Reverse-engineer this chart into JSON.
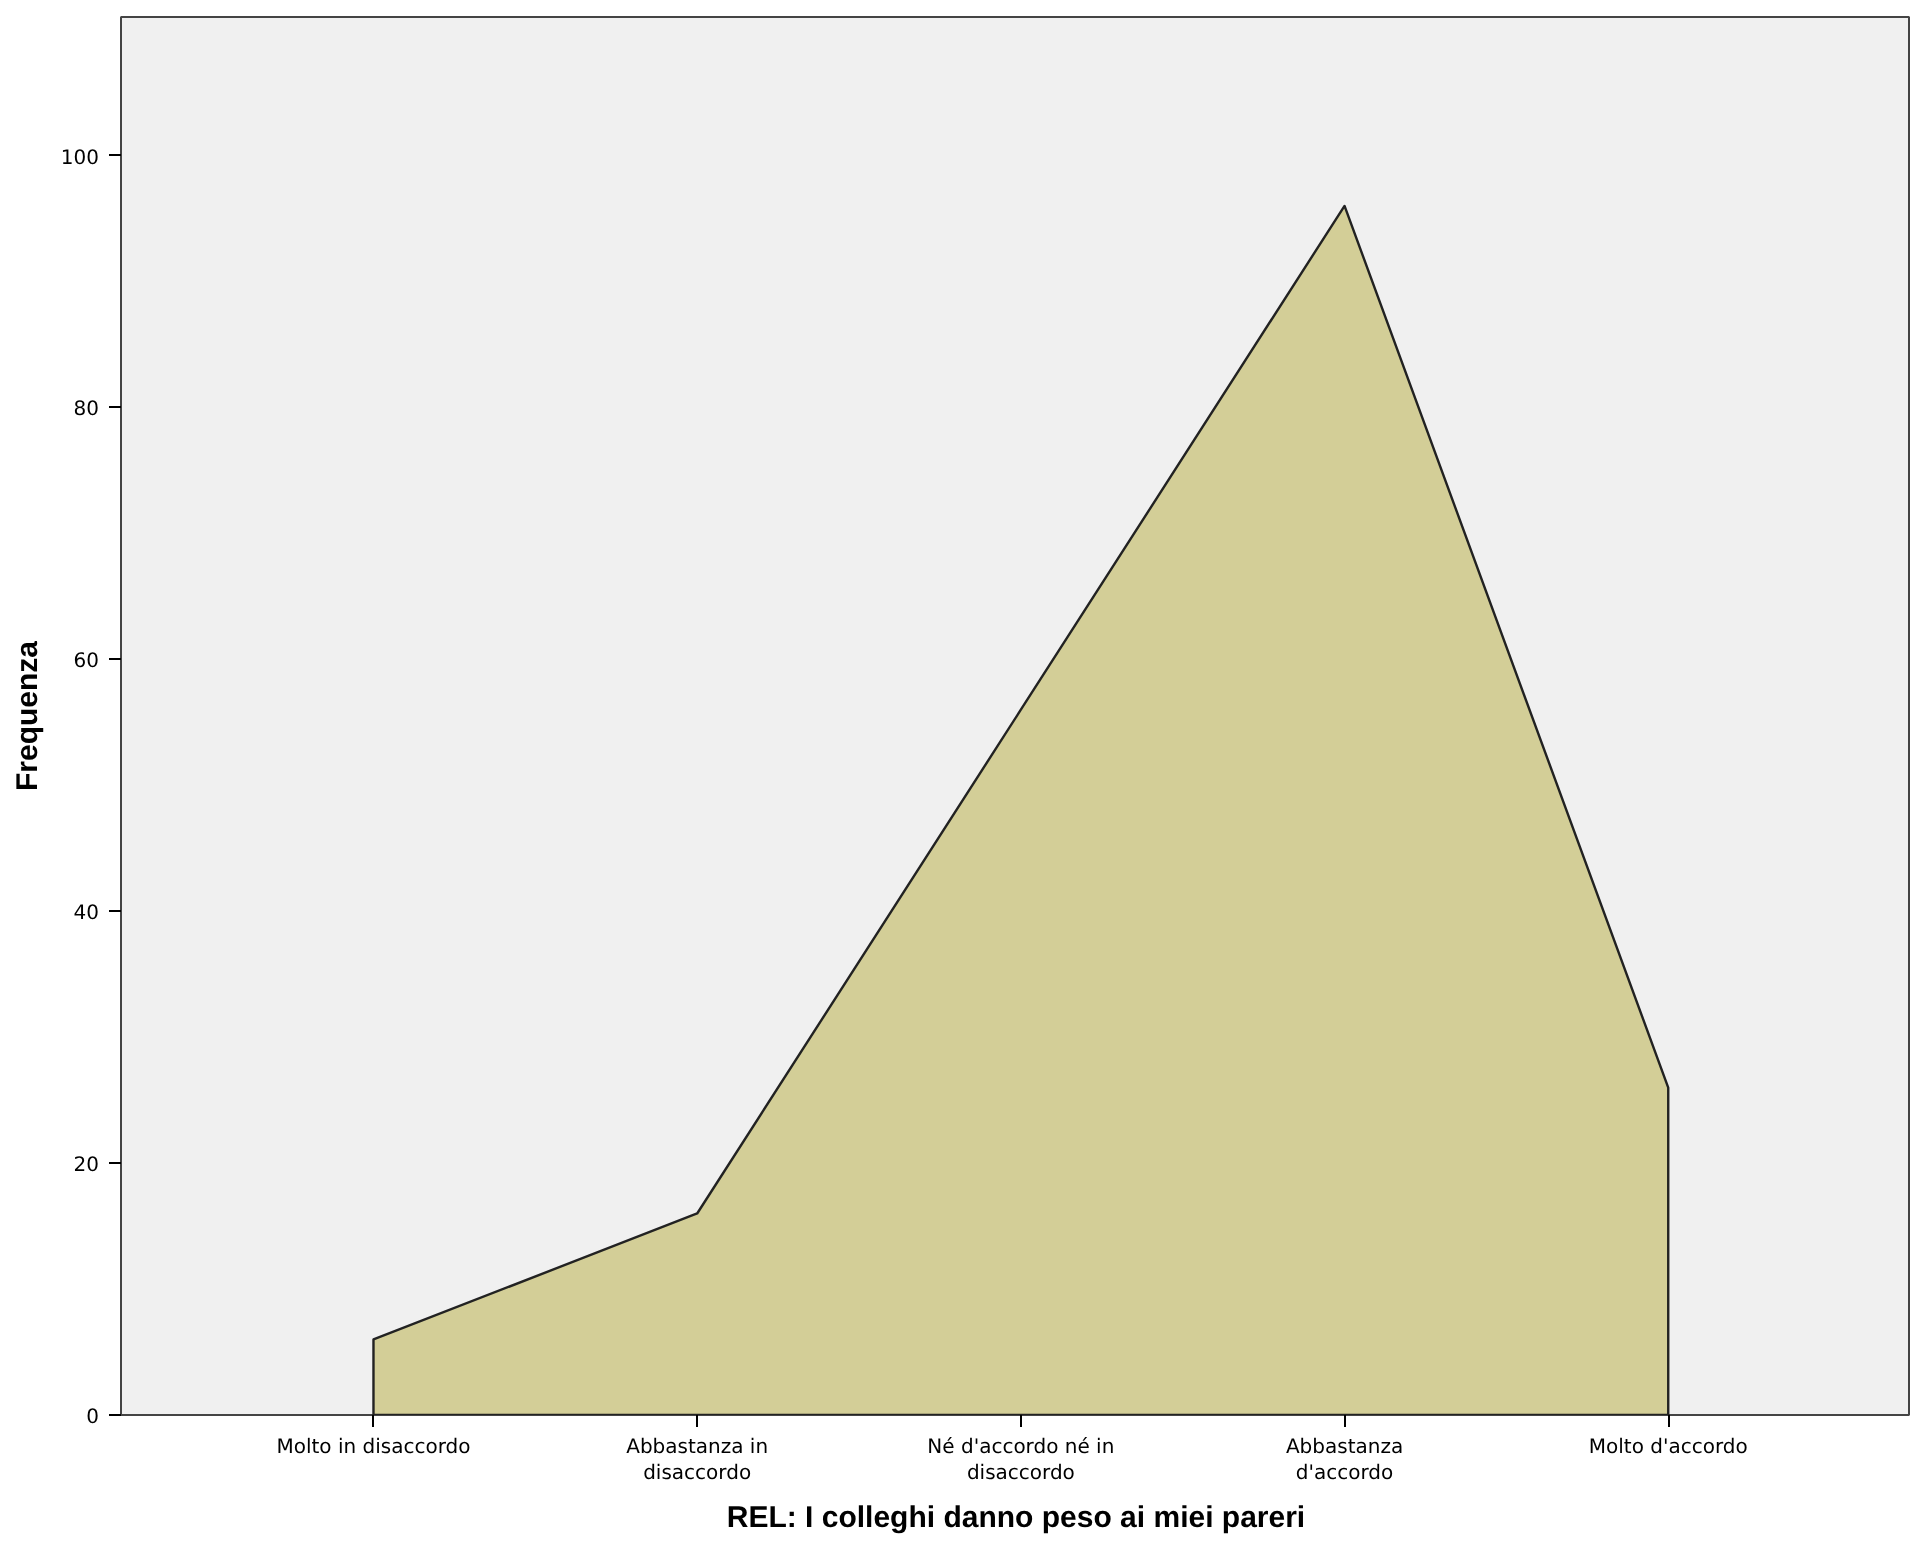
{
  "chart_data": {
    "type": "area",
    "xlabel": "REL: I colleghi danno peso ai miei pareri",
    "ylabel": "Frequenza",
    "categories": [
      "Molto in disaccordo",
      "Abbastanza in disaccordo",
      "Né d'accordo né in disaccordo",
      "Abbastanza d'accordo",
      "Molto d'accordo"
    ],
    "series": [
      {
        "color": "#d3ce97",
        "values": [
          6,
          16,
          56,
          96,
          26
        ]
      }
    ],
    "ylim": [
      0,
      111
    ],
    "yticks": [
      0,
      20,
      40,
      60,
      80,
      100
    ],
    "grid": false
  }
}
